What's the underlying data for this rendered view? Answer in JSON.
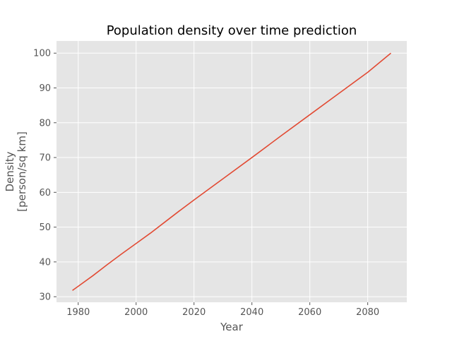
{
  "chart_data": {
    "type": "line",
    "title": "Population density over time prediction",
    "xlabel": "Year",
    "ylabel": [
      "Density",
      "[person/sq km]"
    ],
    "xlim": [
      1972.5,
      2093.5
    ],
    "ylim": [
      28.4,
      103.5
    ],
    "xticks": [
      1980,
      2000,
      2020,
      2040,
      2060,
      2080
    ],
    "yticks": [
      30,
      40,
      50,
      60,
      70,
      80,
      90,
      100
    ],
    "grid": true,
    "series": [
      {
        "color": "#E24A33",
        "x": [
          1978,
          1980,
          1985,
          1990,
          1995,
          2000,
          2005,
          2010,
          2015,
          2020,
          2030,
          2040,
          2050,
          2060,
          2070,
          2080,
          2088
        ],
        "y": [
          31.8,
          33.0,
          36.0,
          39.2,
          42.3,
          45.3,
          48.3,
          51.5,
          54.7,
          57.8,
          63.9,
          70.0,
          76.2,
          82.3,
          88.4,
          94.5,
          100.0
        ]
      }
    ]
  },
  "colors": {
    "plot_background": "#E5E5E5",
    "grid": "#FFFFFF",
    "tick": "#555555"
  }
}
